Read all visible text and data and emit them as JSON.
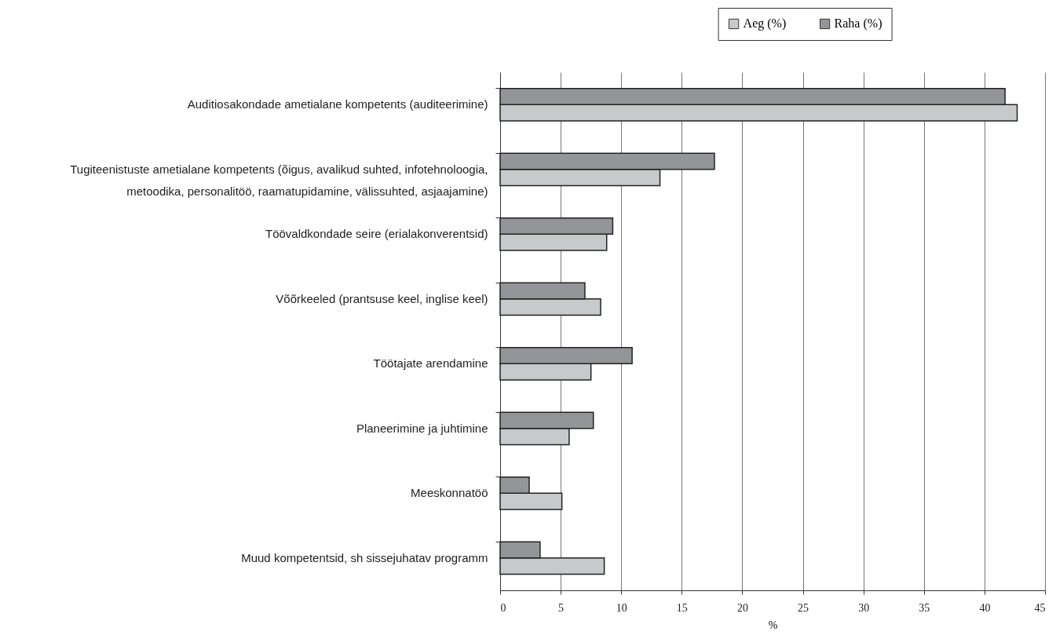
{
  "chart_data": {
    "type": "bar",
    "orientation": "horizontal",
    "xlabel": "%",
    "categories": [
      "Auditiosakondade ametialane kompetents (auditeerimine)",
      "Tugiteenistuste ametialane kompetents (õigus, avalikud suhted, infotehnoloogia, metoodika, personalitöö, raamatupidamine, välissuhted, asjaajamine)",
      "Töövaldkondade seire (erialakonverentsid)",
      "Võõrkeeled (prantsuse keel, inglise keel)",
      "Töötajate arendamine",
      "Planeerimine ja juhtimine",
      "Meeskonnatöö",
      "Muud kompetentsid, sh sissejuhatav programm"
    ],
    "series": [
      {
        "name": "Aeg (%)",
        "color": "#c8c9cb",
        "values": [
          42.7,
          13.2,
          8.8,
          8.3,
          7.5,
          5.7,
          5.1,
          8.6
        ]
      },
      {
        "name": "Raha (%)",
        "color": "#949598",
        "values": [
          41.7,
          17.7,
          9.3,
          7.0,
          10.9,
          7.7,
          2.4,
          3.3
        ]
      }
    ],
    "xlim": [
      0,
      45
    ],
    "xticks": [
      0,
      5,
      10,
      15,
      20,
      25,
      30,
      35,
      40,
      45
    ],
    "grid": "x",
    "legend": "top"
  }
}
